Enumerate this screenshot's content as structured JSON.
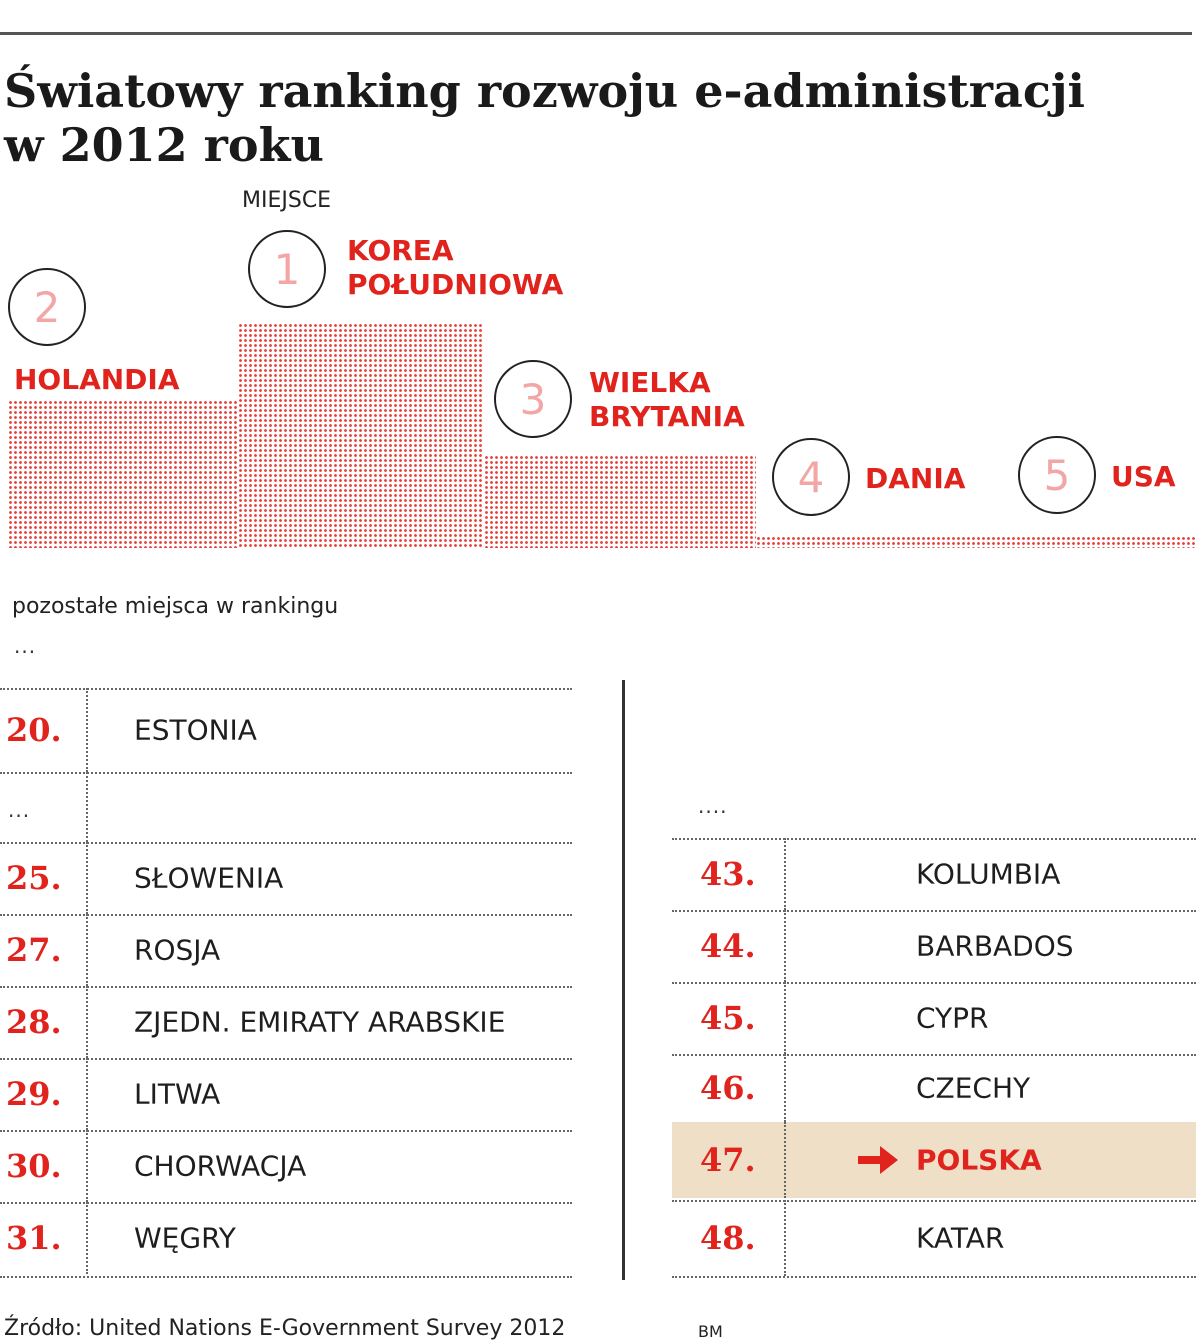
{
  "title": {
    "line1": "Światowy ranking rozwoju e-administracji",
    "line2": "w 2012 roku"
  },
  "podium": {
    "place_label": "MIEJSCE",
    "top5": [
      {
        "place": "1",
        "country_line1": "KOREA",
        "country_line2": "POŁUDNIOWA"
      },
      {
        "place": "2",
        "country_line1": "HOLANDIA",
        "country_line2": ""
      },
      {
        "place": "3",
        "country_line1": "WIELKA",
        "country_line2": "BRYTANIA"
      },
      {
        "place": "4",
        "country_line1": "DANIA",
        "country_line2": ""
      },
      {
        "place": "5",
        "country_line1": "USA",
        "country_line2": ""
      }
    ]
  },
  "other_places": {
    "heading": "pozostałe miejsca w rankingu",
    "ellipsis_top": "...",
    "ellipsis_left": "...",
    "ellipsis_right": "....",
    "left_column": [
      {
        "rank": "20.",
        "country": "ESTONIA"
      },
      {
        "rank": "25.",
        "country": "SŁOWENIA"
      },
      {
        "rank": "27.",
        "country": "ROSJA"
      },
      {
        "rank": "28.",
        "country": "ZJEDN. EMIRATY ARABSKIE"
      },
      {
        "rank": "29.",
        "country": "LITWA"
      },
      {
        "rank": "30.",
        "country": "CHORWACJA"
      },
      {
        "rank": "31.",
        "country": "WĘGRY"
      }
    ],
    "right_column": [
      {
        "rank": "43.",
        "country": "KOLUMBIA"
      },
      {
        "rank": "44.",
        "country": "BARBADOS"
      },
      {
        "rank": "45.",
        "country": "CYPR"
      },
      {
        "rank": "46.",
        "country": "CZECHY"
      },
      {
        "rank": "47.",
        "country": "POLSKA",
        "highlighted": true
      },
      {
        "rank": "48.",
        "country": "KATAR"
      }
    ]
  },
  "footer": {
    "source": "Źródło: United Nations E-Government Survey 2012",
    "author": "BM"
  },
  "colors": {
    "accent_red": "#e0231c",
    "highlight_bg": "#f0dfc7",
    "circle_digit": "#f2a6a6"
  },
  "icons": {
    "highlight_marker": "arrow-right-icon"
  }
}
